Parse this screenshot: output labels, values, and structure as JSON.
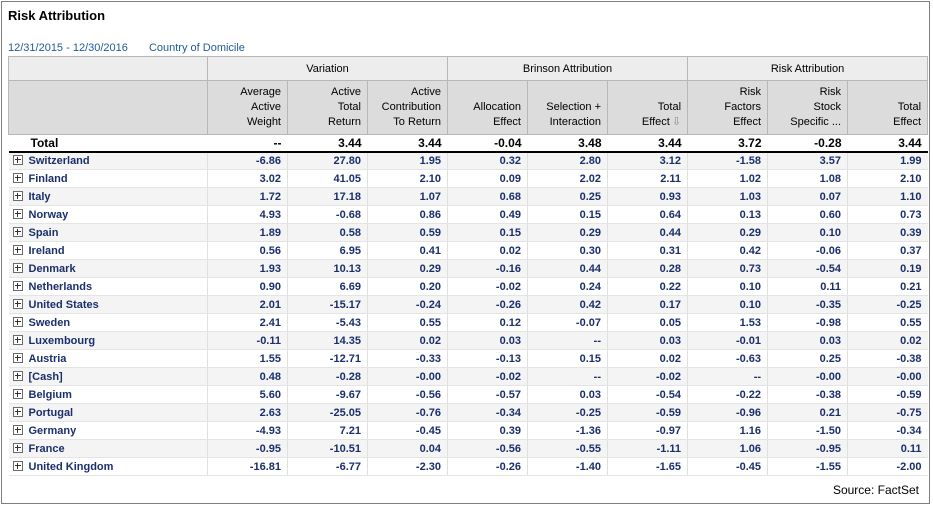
{
  "header": {
    "title": "Risk Attribution",
    "date_range": "12/31/2015 - 12/30/2016",
    "grouping": "Country of Domicile"
  },
  "groups": [
    {
      "label": ""
    },
    {
      "label": "Variation"
    },
    {
      "label": "Brinson Attribution"
    },
    {
      "label": "Risk Attribution"
    }
  ],
  "columns": [
    {
      "line1": "Average",
      "line2": "Active",
      "line3": "Weight"
    },
    {
      "line1": "Active",
      "line2": "Total",
      "line3": "Return"
    },
    {
      "line1": "Active",
      "line2": "Contribution",
      "line3": "To Return"
    },
    {
      "line1": "",
      "line2": "Allocation",
      "line3": "Effect"
    },
    {
      "line1": "",
      "line2": "Selection +",
      "line3": "Interaction"
    },
    {
      "line1": "",
      "line2": "Total",
      "line3": "Effect"
    },
    {
      "line1": "Risk",
      "line2": "Factors",
      "line3": "Effect"
    },
    {
      "line1": "Risk",
      "line2": "Stock",
      "line3": "Specific ..."
    },
    {
      "line1": "",
      "line2": "Total",
      "line3": "Effect"
    }
  ],
  "sort_icon": "sort-down-arrow-icon",
  "total": {
    "name": "Total",
    "values": [
      "--",
      "3.44",
      "3.44",
      "-0.04",
      "3.48",
      "3.44",
      "3.72",
      "-0.28",
      "3.44"
    ]
  },
  "rows": [
    {
      "name": "Switzerland",
      "values": [
        "-6.86",
        "27.80",
        "1.95",
        "0.32",
        "2.80",
        "3.12",
        "-1.58",
        "3.57",
        "1.99"
      ]
    },
    {
      "name": "Finland",
      "values": [
        "3.02",
        "41.05",
        "2.10",
        "0.09",
        "2.02",
        "2.11",
        "1.02",
        "1.08",
        "2.10"
      ]
    },
    {
      "name": "Italy",
      "values": [
        "1.72",
        "17.18",
        "1.07",
        "0.68",
        "0.25",
        "0.93",
        "1.03",
        "0.07",
        "1.10"
      ]
    },
    {
      "name": "Norway",
      "values": [
        "4.93",
        "-0.68",
        "0.86",
        "0.49",
        "0.15",
        "0.64",
        "0.13",
        "0.60",
        "0.73"
      ]
    },
    {
      "name": "Spain",
      "values": [
        "1.89",
        "0.58",
        "0.59",
        "0.15",
        "0.29",
        "0.44",
        "0.29",
        "0.10",
        "0.39"
      ]
    },
    {
      "name": "Ireland",
      "values": [
        "0.56",
        "6.95",
        "0.41",
        "0.02",
        "0.30",
        "0.31",
        "0.42",
        "-0.06",
        "0.37"
      ]
    },
    {
      "name": "Denmark",
      "values": [
        "1.93",
        "10.13",
        "0.29",
        "-0.16",
        "0.44",
        "0.28",
        "0.73",
        "-0.54",
        "0.19"
      ]
    },
    {
      "name": "Netherlands",
      "values": [
        "0.90",
        "6.69",
        "0.20",
        "-0.02",
        "0.24",
        "0.22",
        "0.10",
        "0.11",
        "0.21"
      ]
    },
    {
      "name": "United States",
      "values": [
        "2.01",
        "-15.17",
        "-0.24",
        "-0.26",
        "0.42",
        "0.17",
        "0.10",
        "-0.35",
        "-0.25"
      ]
    },
    {
      "name": "Sweden",
      "values": [
        "2.41",
        "-5.43",
        "0.55",
        "0.12",
        "-0.07",
        "0.05",
        "1.53",
        "-0.98",
        "0.55"
      ]
    },
    {
      "name": "Luxembourg",
      "values": [
        "-0.11",
        "14.35",
        "0.02",
        "0.03",
        "--",
        "0.03",
        "-0.01",
        "0.03",
        "0.02"
      ]
    },
    {
      "name": "Austria",
      "values": [
        "1.55",
        "-12.71",
        "-0.33",
        "-0.13",
        "0.15",
        "0.02",
        "-0.63",
        "0.25",
        "-0.38"
      ]
    },
    {
      "name": "[Cash]",
      "values": [
        "0.48",
        "-0.28",
        "-0.00",
        "-0.02",
        "--",
        "-0.02",
        "--",
        "-0.00",
        "-0.00"
      ]
    },
    {
      "name": "Belgium",
      "values": [
        "5.60",
        "-9.67",
        "-0.56",
        "-0.57",
        "0.03",
        "-0.54",
        "-0.22",
        "-0.38",
        "-0.59"
      ]
    },
    {
      "name": "Portugal",
      "values": [
        "2.63",
        "-25.05",
        "-0.76",
        "-0.34",
        "-0.25",
        "-0.59",
        "-0.96",
        "0.21",
        "-0.75"
      ]
    },
    {
      "name": "Germany",
      "values": [
        "-4.93",
        "7.21",
        "-0.45",
        "0.39",
        "-1.36",
        "-0.97",
        "1.16",
        "-1.50",
        "-0.34"
      ]
    },
    {
      "name": "France",
      "values": [
        "-0.95",
        "-10.51",
        "0.04",
        "-0.56",
        "-0.55",
        "-1.11",
        "1.06",
        "-0.95",
        "0.11"
      ]
    },
    {
      "name": "United Kingdom",
      "values": [
        "-16.81",
        "-6.77",
        "-2.30",
        "-0.26",
        "-1.40",
        "-1.65",
        "-0.45",
        "-1.55",
        "-2.00"
      ]
    }
  ],
  "footer": {
    "source": "Source: FactSet"
  }
}
